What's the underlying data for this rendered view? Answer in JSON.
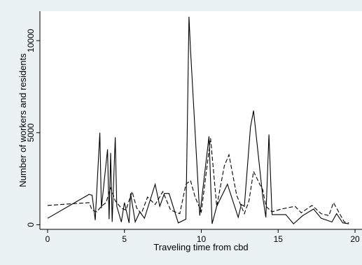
{
  "chart_data": {
    "type": "line",
    "title": "",
    "xlabel": "Traveling time from cbd",
    "ylabel": "Number of workers and residents",
    "xlim": [
      -0.5,
      20.5
    ],
    "ylim": [
      -250,
      11600
    ],
    "xticks": [
      0,
      5,
      10,
      15,
      20
    ],
    "yticks": [
      0,
      5000,
      10000
    ],
    "grid": false,
    "legend": "none",
    "series": [
      {
        "style": "solid",
        "color": "#000000",
        "x": [
          0.0,
          2.7,
          2.9,
          3.1,
          3.4,
          3.5,
          3.9,
          4.0,
          4.1,
          4.2,
          4.4,
          4.5,
          4.8,
          5.0,
          5.3,
          5.4,
          5.7,
          6.0,
          6.3,
          7.0,
          7.3,
          7.6,
          7.9,
          8.5,
          9.0,
          9.2,
          9.3,
          9.9,
          10.5,
          10.7,
          11.0,
          11.7,
          12.4,
          12.6,
          12.8,
          13.2,
          13.4,
          14.0,
          14.2,
          14.4,
          14.6,
          15.5,
          16.0,
          16.6,
          17.3,
          17.8,
          18.5,
          18.8,
          19.2,
          19.6
        ],
        "y": [
          350,
          1650,
          1600,
          250,
          5000,
          900,
          4100,
          300,
          3900,
          150,
          4750,
          1000,
          150,
          1200,
          100,
          1700,
          150,
          700,
          350,
          2200,
          1000,
          1700,
          1700,
          100,
          300,
          11300,
          9500,
          500,
          4800,
          50,
          1000,
          2200,
          400,
          1100,
          1000,
          5300,
          6200,
          1500,
          400,
          4900,
          550,
          550,
          50,
          500,
          850,
          350,
          150,
          600,
          100,
          50
        ]
      },
      {
        "style": "dashed",
        "color": "#000000",
        "x": [
          0.0,
          2.7,
          2.9,
          3.2,
          3.5,
          3.8,
          4.1,
          4.4,
          4.8,
          5.1,
          5.5,
          5.8,
          6.1,
          6.5,
          7.0,
          7.5,
          8.0,
          8.6,
          9.0,
          9.3,
          9.6,
          10.0,
          10.6,
          11.0,
          11.5,
          11.8,
          12.3,
          12.8,
          13.1,
          13.4,
          13.8,
          14.0,
          14.2,
          14.6,
          15.2,
          16.1,
          16.5,
          17.2,
          17.8,
          18.3,
          18.6,
          19.3,
          19.6
        ],
        "y": [
          1050,
          1200,
          800,
          700,
          1000,
          1200,
          2000,
          1300,
          900,
          800,
          1800,
          900,
          600,
          1500,
          1100,
          1800,
          800,
          600,
          2200,
          2400,
          1500,
          700,
          4700,
          1000,
          3200,
          3800,
          1600,
          600,
          1300,
          2900,
          2200,
          1900,
          1000,
          700,
          850,
          1000,
          650,
          1050,
          600,
          500,
          1200,
          150,
          100
        ]
      }
    ]
  }
}
